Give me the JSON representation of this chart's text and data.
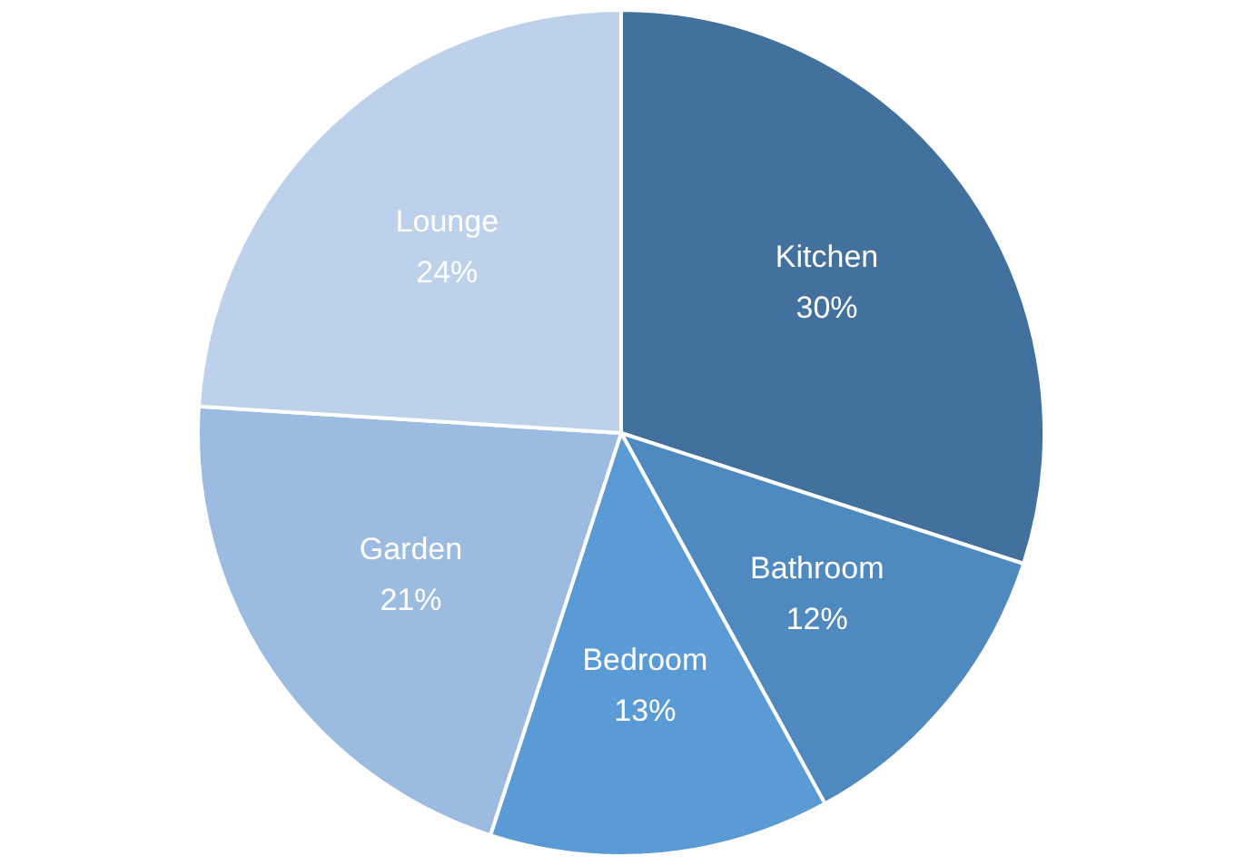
{
  "chart_data": {
    "type": "pie",
    "categories": [
      "Kitchen",
      "Bathroom",
      "Bedroom",
      "Garden",
      "Lounge"
    ],
    "values": [
      30,
      12,
      13,
      21,
      24
    ],
    "value_labels": [
      "30%",
      "12%",
      "13%",
      "21%",
      "24%"
    ],
    "colors": [
      "#41719c",
      "#4e89c0",
      "#5b9bd5",
      "#9cbbe1",
      "#bdd1ea"
    ]
  }
}
